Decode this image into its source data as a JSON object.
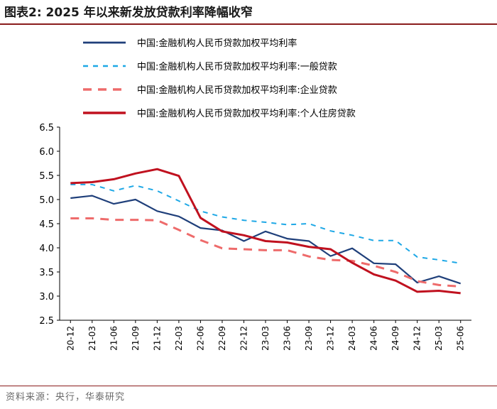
{
  "title": "图表2:   2025 年以来新发放贷款利率降幅收窄",
  "source": "资料来源：央行，华泰研究",
  "chart_data": {
    "type": "line",
    "title": "2025 年以来新发放贷款利率降幅收窄",
    "xlabel": "",
    "ylabel": "",
    "ylim": [
      2.5,
      6.5
    ],
    "yticks": [
      "6.5",
      "6.0",
      "5.5",
      "5.0",
      "4.5",
      "4.0",
      "3.5",
      "3.0",
      "2.5"
    ],
    "x": [
      "20-12",
      "21-03",
      "21-06",
      "21-09",
      "21-12",
      "22-03",
      "22-06",
      "22-09",
      "22-12",
      "23-03",
      "23-06",
      "23-09",
      "23-12",
      "24-03",
      "24-06",
      "24-09",
      "24-12",
      "25-03",
      "25-06"
    ],
    "legend_position": "top",
    "series": [
      {
        "name": "中国:金融机构人民币贷款加权平均利率",
        "color": "#1f3f7a",
        "dash": "solid",
        "width": 2.2,
        "values": [
          5.03,
          5.08,
          4.91,
          5.0,
          4.76,
          4.65,
          4.41,
          4.36,
          4.14,
          4.34,
          4.19,
          4.14,
          3.83,
          3.99,
          3.68,
          3.66,
          3.28,
          3.41,
          3.26
        ]
      },
      {
        "name": "中国:金融机构人民币贷款加权平均利率:一般贷款",
        "color": "#1ea8e6",
        "dash": "dashed-fine",
        "width": 2,
        "values": [
          5.31,
          5.31,
          5.18,
          5.29,
          5.18,
          4.97,
          4.76,
          4.64,
          4.57,
          4.53,
          4.48,
          4.5,
          4.35,
          4.26,
          4.15,
          4.15,
          3.81,
          3.75,
          3.68
        ]
      },
      {
        "name": "中国:金融机构人民币贷款加权平均利率:企业贷款",
        "color": "#ee6b6b",
        "dash": "dashed-bold",
        "width": 3,
        "values": [
          4.61,
          4.61,
          4.58,
          4.58,
          4.57,
          4.37,
          4.16,
          3.99,
          3.97,
          3.95,
          3.95,
          3.82,
          3.75,
          3.73,
          3.63,
          3.5,
          3.31,
          3.23,
          3.2
        ]
      },
      {
        "name": "中国:金融机构人民币贷款加权平均利率:个人住房贷款",
        "color": "#c0111f",
        "dash": "solid",
        "width": 3,
        "values": [
          5.34,
          5.36,
          5.42,
          5.54,
          5.63,
          5.49,
          4.62,
          4.34,
          4.26,
          4.14,
          4.11,
          4.02,
          3.97,
          3.69,
          3.45,
          3.32,
          3.09,
          3.11,
          3.06
        ]
      }
    ]
  }
}
